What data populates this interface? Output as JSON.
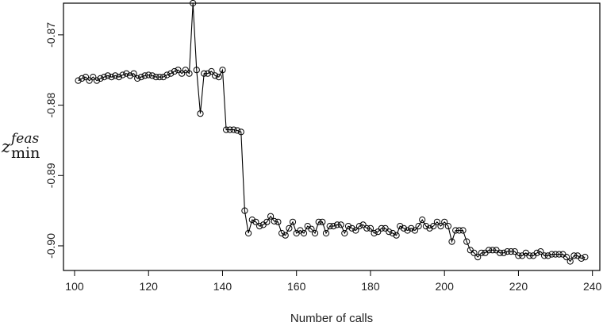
{
  "chart_data": {
    "type": "line",
    "title": "",
    "xlabel": "Number of calls",
    "ylabel": {
      "base": "z",
      "superscript": "feas",
      "subscript": "min"
    },
    "xlim": [
      97,
      242
    ],
    "ylim": [
      -0.9035,
      -0.8655
    ],
    "x_ticks": [
      100,
      120,
      140,
      160,
      180,
      200,
      220,
      240
    ],
    "y_ticks": [
      -0.87,
      -0.88,
      -0.89,
      -0.9
    ],
    "y_tick_labels": [
      "-0.87",
      "-0.88",
      "-0.89",
      "-0.90"
    ],
    "grid": false,
    "marker": "open-circle",
    "series": [
      {
        "x": [
          101,
          102,
          103,
          104,
          105,
          106,
          107,
          108,
          109,
          110,
          111,
          112,
          113,
          114,
          115,
          116,
          117,
          118,
          119,
          120,
          121,
          122,
          123,
          124,
          125,
          126,
          127,
          128,
          129,
          130,
          131,
          132,
          133,
          134,
          135,
          136,
          137,
          138,
          139,
          140,
          141,
          142,
          143,
          144,
          145,
          146,
          147,
          148,
          149,
          150,
          151,
          152,
          153,
          154,
          155,
          156,
          157,
          158,
          159,
          160,
          161,
          162,
          163,
          164,
          165,
          166,
          167,
          168,
          169,
          170,
          171,
          172,
          173,
          174,
          175,
          176,
          177,
          178,
          179,
          180,
          181,
          182,
          183,
          184,
          185,
          186,
          187,
          188,
          189,
          190,
          191,
          192,
          193,
          194,
          195,
          196,
          197,
          198,
          199,
          200,
          201,
          202,
          203,
          204,
          205,
          206,
          207,
          208,
          209,
          210,
          211,
          212,
          213,
          214,
          215,
          216,
          217,
          218,
          219,
          220,
          221,
          222,
          223,
          224,
          225,
          226,
          227,
          228,
          229,
          230,
          231,
          232,
          233,
          234,
          235,
          236,
          237,
          238
        ],
        "y": [
          -0.8765,
          -0.8762,
          -0.876,
          -0.8765,
          -0.876,
          -0.8765,
          -0.8762,
          -0.876,
          -0.8758,
          -0.876,
          -0.8758,
          -0.876,
          -0.8757,
          -0.8755,
          -0.8758,
          -0.8755,
          -0.8762,
          -0.876,
          -0.8758,
          -0.8757,
          -0.8758,
          -0.876,
          -0.876,
          -0.876,
          -0.8757,
          -0.8755,
          -0.8752,
          -0.875,
          -0.8755,
          -0.875,
          -0.8755,
          -0.8655,
          -0.875,
          -0.8812,
          -0.8755,
          -0.8755,
          -0.8752,
          -0.8758,
          -0.876,
          -0.875,
          -0.8835,
          -0.8835,
          -0.8835,
          -0.8836,
          -0.8838,
          -0.895,
          -0.8982,
          -0.8963,
          -0.8966,
          -0.8972,
          -0.897,
          -0.8966,
          -0.8958,
          -0.8965,
          -0.8966,
          -0.8982,
          -0.8985,
          -0.8975,
          -0.8966,
          -0.8982,
          -0.8978,
          -0.8982,
          -0.8972,
          -0.8976,
          -0.8982,
          -0.8966,
          -0.8966,
          -0.8982,
          -0.8972,
          -0.8972,
          -0.897,
          -0.897,
          -0.8982,
          -0.8972,
          -0.8975,
          -0.8978,
          -0.8972,
          -0.897,
          -0.8975,
          -0.8975,
          -0.8982,
          -0.898,
          -0.8975,
          -0.8975,
          -0.898,
          -0.8982,
          -0.8985,
          -0.8972,
          -0.8975,
          -0.8978,
          -0.8975,
          -0.8978,
          -0.8972,
          -0.8963,
          -0.8972,
          -0.8975,
          -0.8972,
          -0.8966,
          -0.8972,
          -0.8966,
          -0.8972,
          -0.8994,
          -0.8978,
          -0.8978,
          -0.8978,
          -0.8994,
          -0.9006,
          -0.901,
          -0.9016,
          -0.901,
          -0.901,
          -0.9006,
          -0.9006,
          -0.9006,
          -0.901,
          -0.901,
          -0.9008,
          -0.9008,
          -0.9008,
          -0.9014,
          -0.9014,
          -0.901,
          -0.9014,
          -0.9014,
          -0.901,
          -0.9008,
          -0.9014,
          -0.9014,
          -0.9012,
          -0.9012,
          -0.9012,
          -0.9012,
          -0.9016,
          -0.9022,
          -0.9014,
          -0.9014,
          -0.9018,
          -0.9016
        ]
      }
    ]
  }
}
